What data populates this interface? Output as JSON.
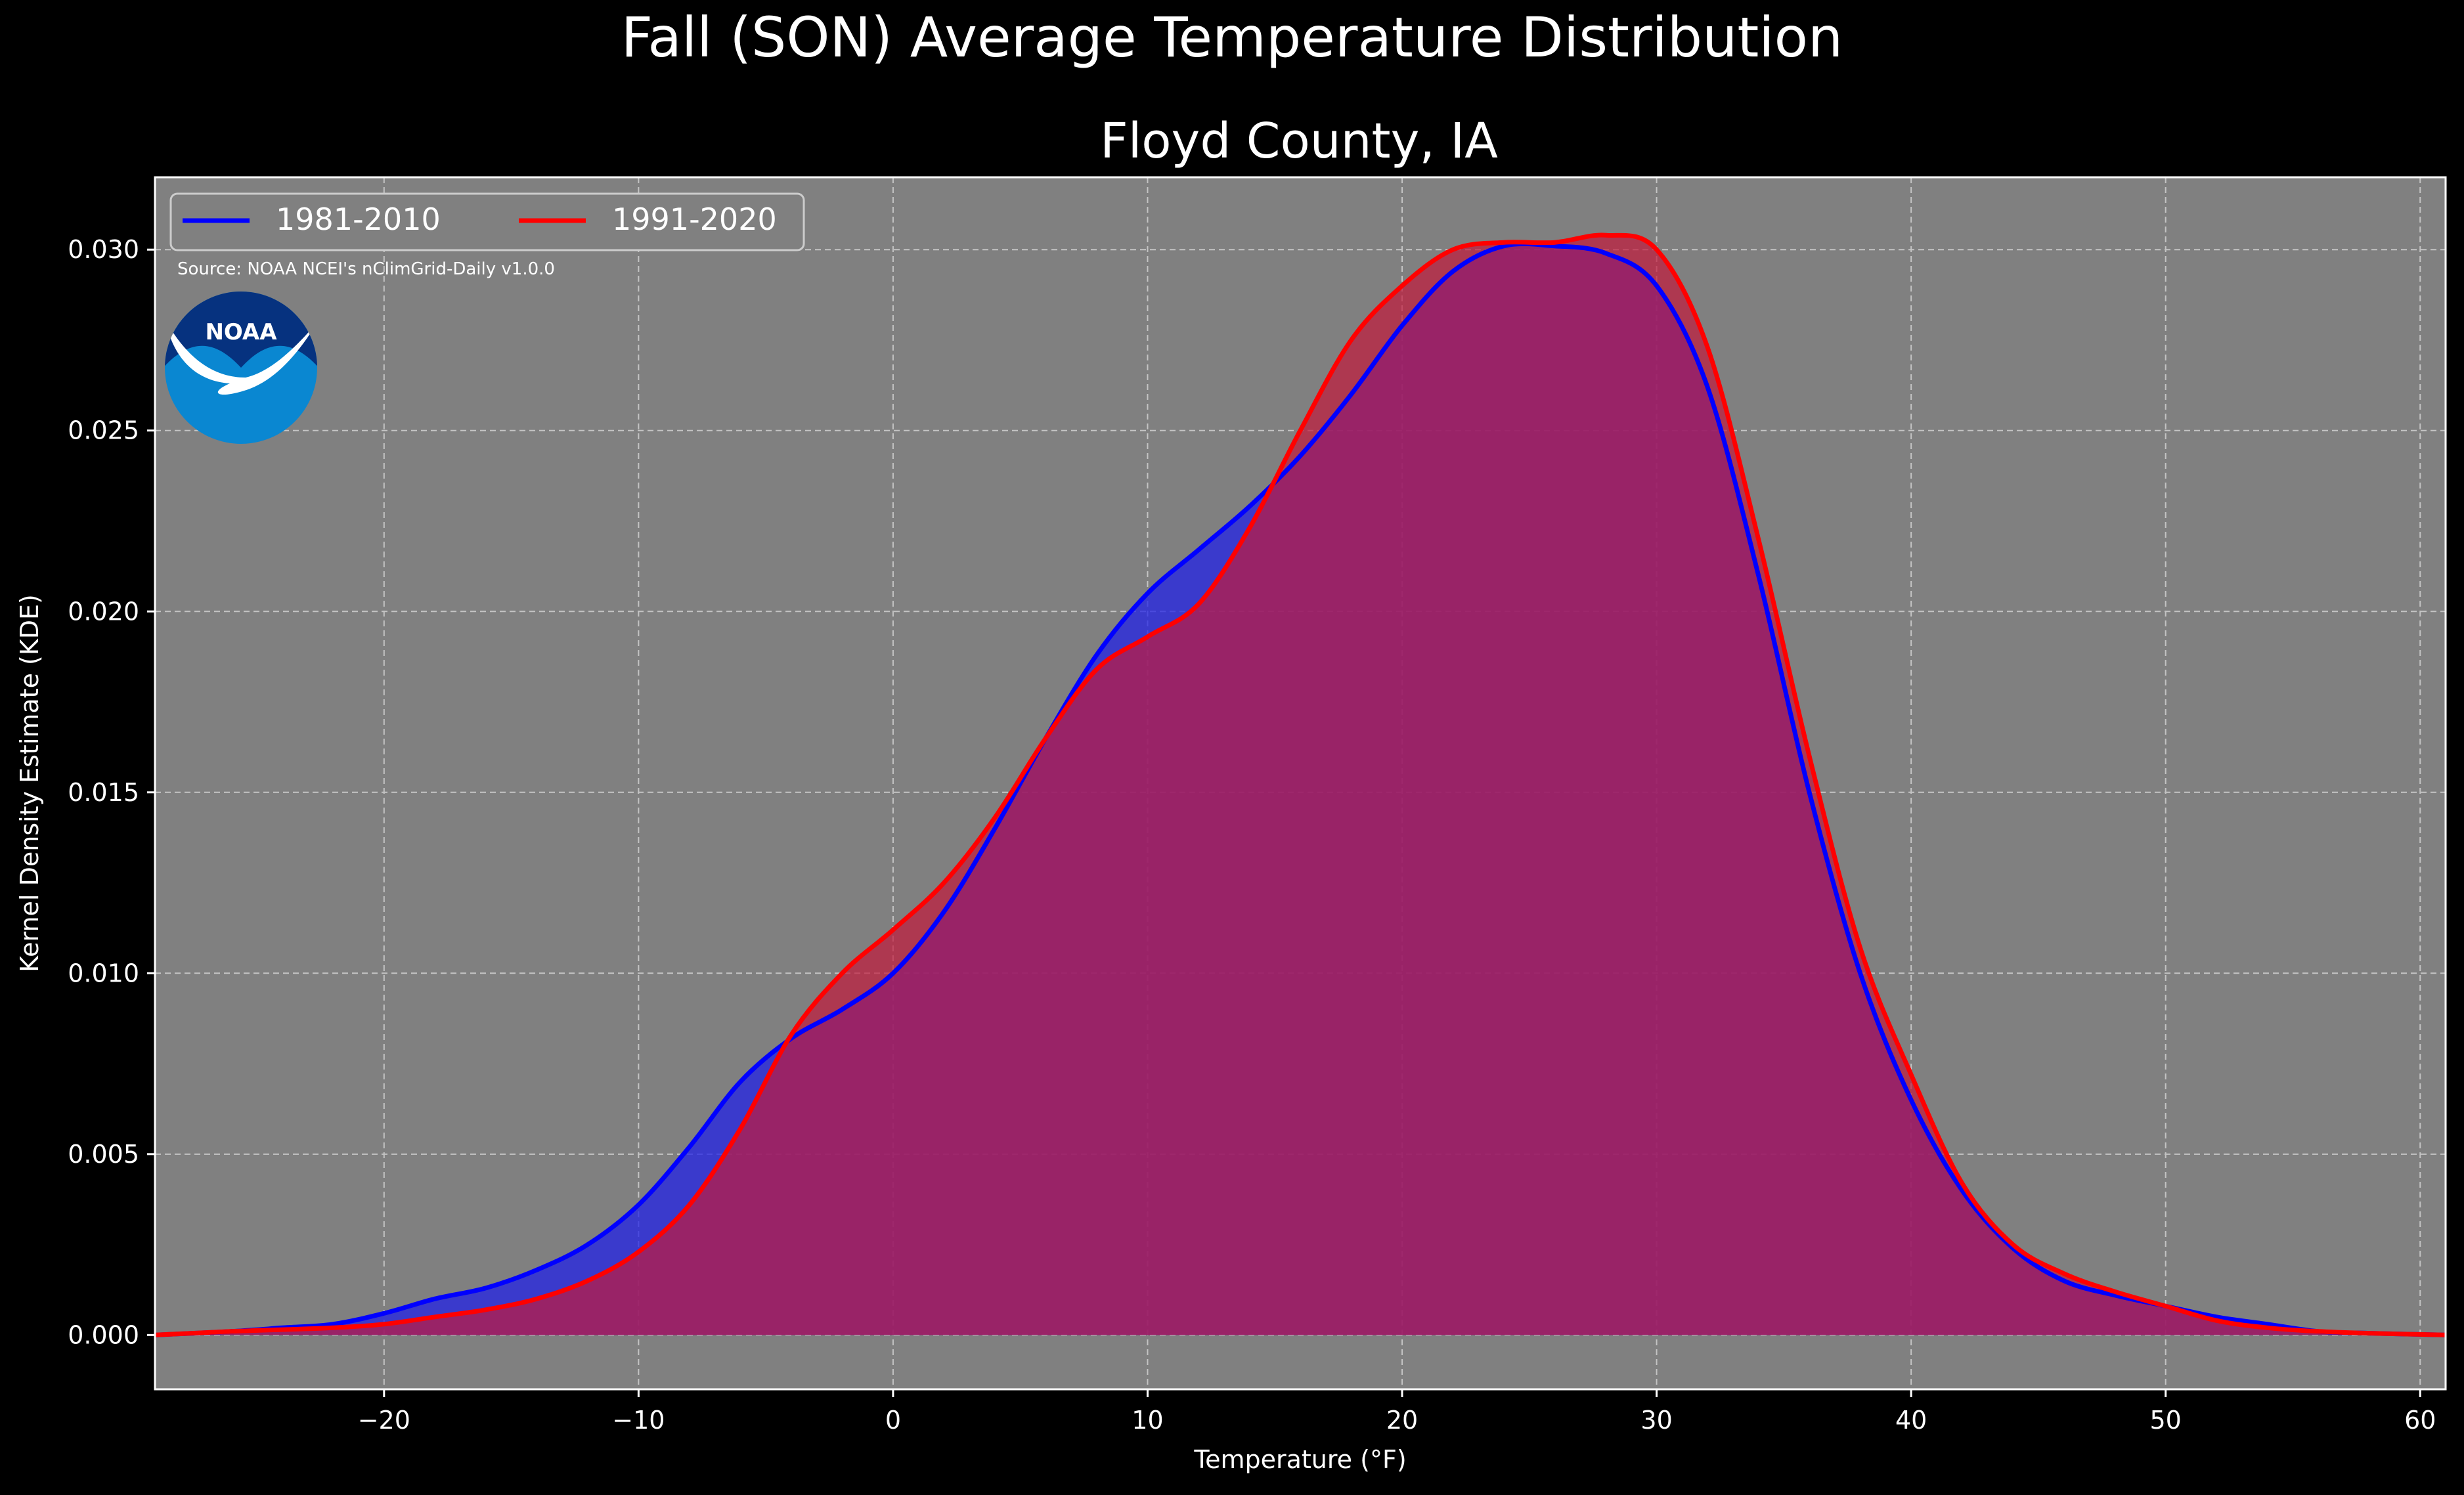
{
  "chart_data": {
    "type": "area",
    "title": "Fall (SON) Average Temperature Distribution",
    "subtitle": "Floyd County, IA",
    "xlabel": "Temperature (°F)",
    "ylabel": "Kernel Density Estimate (KDE)",
    "source_note": "Source: NOAA NCEI's nClimGrid-Daily v1.0.0",
    "logo_text": "NOAA",
    "xlim": [
      -29,
      61
    ],
    "ylim": [
      -0.0015,
      0.032
    ],
    "x_ticks": [
      -20,
      -10,
      0,
      10,
      20,
      30,
      40,
      50,
      60
    ],
    "x_tick_labels": [
      "−20",
      "−10",
      "0",
      "10",
      "20",
      "30",
      "40",
      "50",
      "60"
    ],
    "y_ticks": [
      0,
      0.005,
      0.01,
      0.015,
      0.02,
      0.025,
      0.03
    ],
    "y_tick_labels": [
      "0.000",
      "0.005",
      "0.010",
      "0.015",
      "0.020",
      "0.025",
      "0.030"
    ],
    "grid": true,
    "legend_position": "top-left",
    "series": [
      {
        "name": "1981-2010",
        "color": "#0000ff",
        "fill": "#2323e6",
        "x": [
          -29,
          -26,
          -24,
          -22,
          -20,
          -18,
          -16,
          -14,
          -12,
          -10,
          -8,
          -6,
          -4,
          -2,
          0,
          2,
          4,
          6,
          8,
          10,
          12,
          14,
          16,
          18,
          20,
          22,
          24,
          26,
          28,
          30,
          32,
          34,
          36,
          38,
          40,
          42,
          44,
          46,
          48,
          50,
          52,
          54,
          56,
          58,
          61
        ],
        "y": [
          0.0,
          0.0001,
          0.0002,
          0.0003,
          0.0006,
          0.001,
          0.0013,
          0.0018,
          0.0025,
          0.0036,
          0.0052,
          0.007,
          0.0082,
          0.009,
          0.01,
          0.0117,
          0.014,
          0.0165,
          0.0188,
          0.0205,
          0.0217,
          0.0229,
          0.0243,
          0.026,
          0.0279,
          0.0294,
          0.0301,
          0.0301,
          0.0299,
          0.029,
          0.0262,
          0.021,
          0.015,
          0.01,
          0.0065,
          0.004,
          0.0024,
          0.0015,
          0.0011,
          0.0008,
          0.0005,
          0.0003,
          0.0001,
          5e-05,
          0.0
        ]
      },
      {
        "name": "1991-2020",
        "color": "#ff0000",
        "fill": "#c21a3c",
        "x": [
          -29,
          -26,
          -24,
          -22,
          -20,
          -18,
          -16,
          -14,
          -12,
          -10,
          -8,
          -6,
          -4,
          -2,
          0,
          2,
          4,
          6,
          8,
          10,
          12,
          14,
          16,
          18,
          20,
          22,
          24,
          26,
          28,
          30,
          32,
          34,
          36,
          38,
          40,
          42,
          44,
          46,
          48,
          50,
          52,
          54,
          56,
          58,
          61
        ],
        "y": [
          0.0,
          0.0001,
          0.00015,
          0.0002,
          0.0003,
          0.0005,
          0.0007,
          0.001,
          0.0015,
          0.0023,
          0.0036,
          0.0057,
          0.0083,
          0.01,
          0.0112,
          0.0125,
          0.0143,
          0.0165,
          0.0184,
          0.0193,
          0.0202,
          0.0223,
          0.025,
          0.0275,
          0.029,
          0.03,
          0.0302,
          0.0302,
          0.0304,
          0.03,
          0.0273,
          0.022,
          0.016,
          0.0107,
          0.0072,
          0.0042,
          0.0025,
          0.0017,
          0.0012,
          0.0008,
          0.0004,
          0.0002,
          0.0001,
          5e-05,
          0.0
        ]
      }
    ]
  }
}
